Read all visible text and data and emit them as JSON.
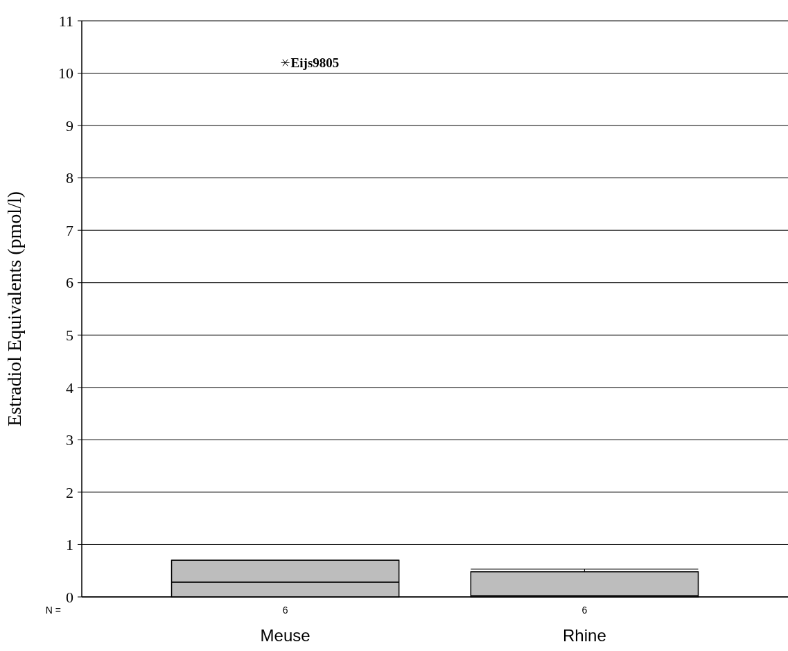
{
  "chart_data": {
    "type": "box",
    "ylabel": "Estradiol Equivalents (pmol/l)",
    "categories": [
      "Meuse",
      "Rhine"
    ],
    "boxes": [
      {
        "low": 0,
        "q1": 0,
        "median": 0.28,
        "q3": 0.7,
        "high": 0.7,
        "outliers": [
          10.2
        ]
      },
      {
        "low": 0,
        "q1": 0,
        "median": 0.02,
        "q3": 0.48,
        "high": 0.53
      }
    ],
    "color": "#bdbdbd",
    "ylim": [
      0,
      11
    ],
    "yticks": [
      0,
      1,
      2,
      3,
      4,
      5,
      6,
      7,
      8,
      9,
      10,
      11
    ],
    "grid": "y",
    "marker": "star",
    "annotations": [
      "Eijs9805",
      "N =",
      "6",
      "6"
    ]
  }
}
